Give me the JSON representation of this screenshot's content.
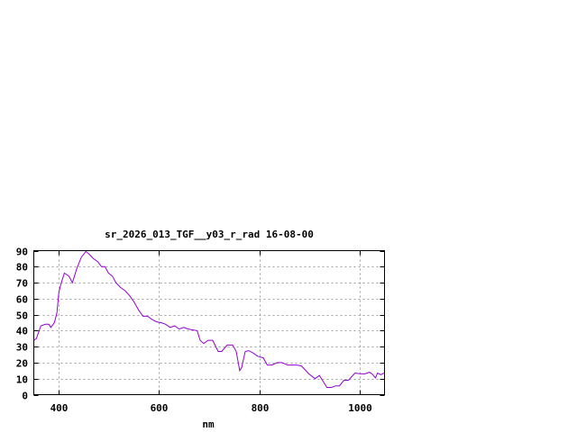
{
  "chart_data": {
    "type": "line",
    "title": "sr_2026_013_TGF__y03_r_rad 16-08-00",
    "xlabel": "nm",
    "ylabel": "",
    "xlim": [
      350,
      1050
    ],
    "ylim": [
      0,
      90
    ],
    "xticks": [
      400,
      600,
      800,
      1000
    ],
    "yticks": [
      0,
      10,
      20,
      30,
      40,
      50,
      60,
      70,
      80,
      90
    ],
    "grid": true,
    "line_color": "#9400d3",
    "series": [
      {
        "x": [
          350,
          355,
          364,
          373,
          380,
          384,
          391,
          396,
          400,
          404,
          411,
          420,
          427,
          436,
          445,
          454,
          460,
          469,
          478,
          485,
          492,
          499,
          507,
          514,
          523,
          532,
          541,
          550,
          559,
          568,
          577,
          586,
          595,
          604,
          613,
          622,
          631,
          640,
          649,
          658,
          676,
          682,
          689,
          698,
          707,
          718,
          725,
          736,
          747,
          754,
          761,
          765,
          772,
          779,
          788,
          797,
          808,
          816,
          825,
          836,
          845,
          857,
          875,
          884,
          899,
          911,
          920,
          926,
          935,
          944,
          953,
          960,
          969,
          978,
          991,
          1002,
          1011,
          1020,
          1025,
          1032,
          1036,
          1043,
          1049
        ],
        "y": [
          34,
          35,
          43,
          44,
          44,
          42,
          45,
          51,
          64,
          69,
          76,
          74,
          70,
          79,
          86,
          89.5,
          88,
          85,
          83,
          80,
          80,
          76,
          74,
          70,
          67,
          65,
          62,
          58,
          53,
          49,
          49,
          47,
          45.5,
          45,
          44,
          42,
          43,
          41,
          42,
          41,
          40,
          34,
          32,
          34,
          34,
          27,
          27,
          31,
          31,
          27,
          15,
          17,
          27,
          27.5,
          26,
          24,
          23,
          18.5,
          18.5,
          20,
          20,
          18.5,
          18.5,
          18,
          13,
          10,
          12,
          9,
          4.5,
          4.5,
          5.5,
          5.5,
          9,
          9,
          13.5,
          13,
          13,
          14,
          13,
          10.5,
          13.5,
          12.5,
          13.5
        ]
      }
    ]
  }
}
